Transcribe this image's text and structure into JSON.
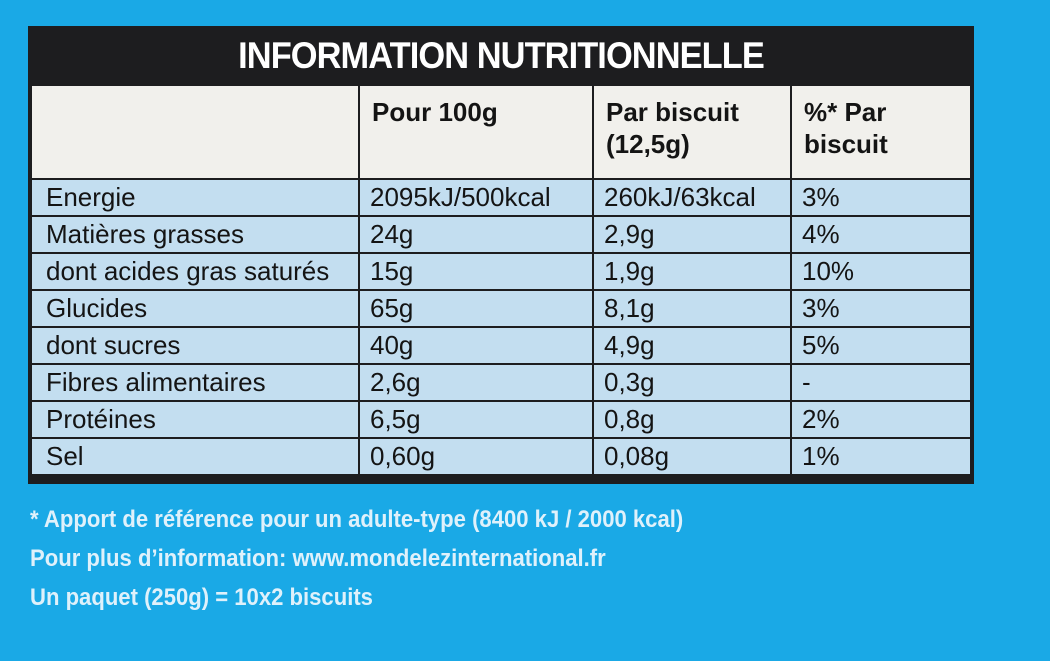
{
  "panel": {
    "title": "INFORMATION NUTRITIONNELLE"
  },
  "table": {
    "headers": [
      "",
      "Pour 100g",
      "Par biscuit (12,5g)",
      "%* Par biscuit"
    ],
    "rows": [
      [
        "Energie",
        "2095kJ/500kcal",
        "260kJ/63kcal",
        "3%"
      ],
      [
        "Matières grasses",
        "24g",
        "2,9g",
        "4%"
      ],
      [
        "dont acides gras saturés",
        "15g",
        "1,9g",
        "10%"
      ],
      [
        "Glucides",
        "65g",
        "8,1g",
        "3%"
      ],
      [
        "dont sucres",
        "40g",
        "4,9g",
        "5%"
      ],
      [
        "Fibres alimentaires",
        "2,6g",
        "0,3g",
        "-"
      ],
      [
        "Protéines",
        "6,5g",
        "0,8g",
        "2%"
      ],
      [
        "Sel",
        "0,60g",
        "0,08g",
        "1%"
      ]
    ]
  },
  "footnotes": {
    "reference": "* Apport de référence pour un adulte-type (8400 kJ / 2000 kcal)",
    "info": "Pour plus d’information: www.mondelezinternational.fr",
    "package": "Un paquet (250g) = 10x2 biscuits"
  },
  "colors": {
    "background": "#1aa9e6",
    "panel": "#1d1d1f",
    "header_cell": "#f1f0ec",
    "row_cell": "#c3def0"
  }
}
